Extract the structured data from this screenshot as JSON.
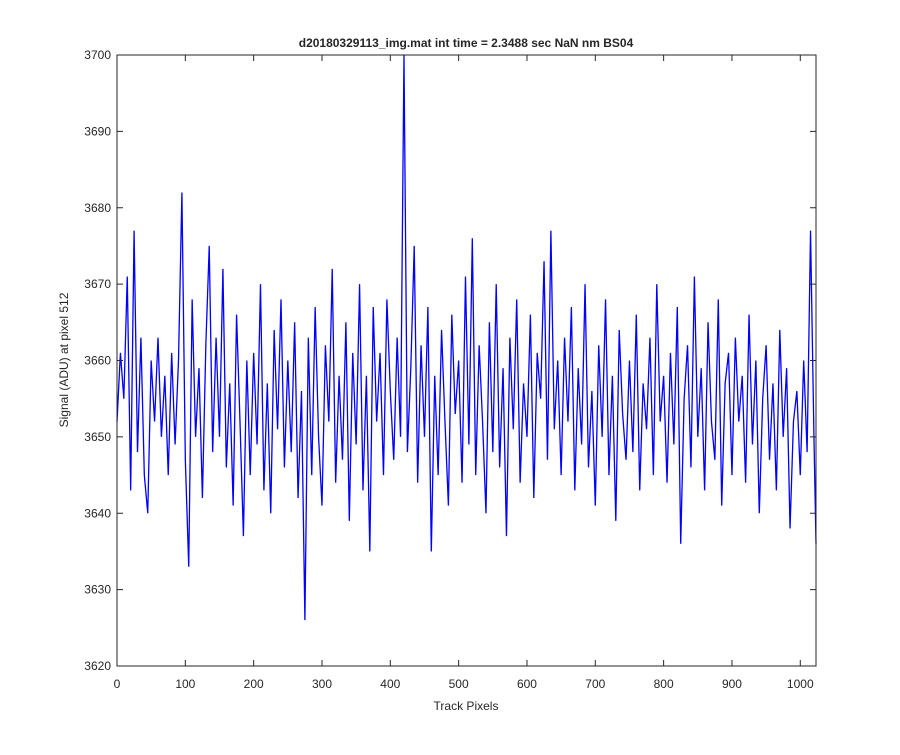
{
  "chart_data": {
    "type": "line",
    "title": "d20180329113_img.mat int time = 2.3488 sec  NaN nm BS04",
    "xlabel": "Track Pixels",
    "ylabel": "Signal (ADU) at pixel 512",
    "x": [
      0,
      5,
      10,
      15,
      20,
      25,
      30,
      35,
      40,
      45,
      50,
      55,
      60,
      65,
      70,
      75,
      80,
      85,
      90,
      95,
      100,
      105,
      110,
      115,
      120,
      125,
      130,
      135,
      140,
      145,
      150,
      155,
      160,
      165,
      170,
      175,
      180,
      185,
      190,
      195,
      200,
      205,
      210,
      215,
      220,
      225,
      230,
      235,
      240,
      245,
      250,
      255,
      260,
      265,
      270,
      275,
      280,
      285,
      290,
      295,
      300,
      305,
      310,
      315,
      320,
      325,
      330,
      335,
      340,
      345,
      350,
      355,
      360,
      365,
      370,
      375,
      380,
      385,
      390,
      395,
      400,
      405,
      410,
      415,
      420,
      425,
      430,
      435,
      440,
      445,
      450,
      455,
      460,
      465,
      470,
      475,
      480,
      485,
      490,
      495,
      500,
      505,
      510,
      515,
      520,
      525,
      530,
      535,
      540,
      545,
      550,
      555,
      560,
      565,
      570,
      575,
      580,
      585,
      590,
      595,
      600,
      605,
      610,
      615,
      620,
      625,
      630,
      635,
      640,
      645,
      650,
      655,
      660,
      665,
      670,
      675,
      680,
      685,
      690,
      695,
      700,
      705,
      710,
      715,
      720,
      725,
      730,
      735,
      740,
      745,
      750,
      755,
      760,
      765,
      770,
      775,
      780,
      785,
      790,
      795,
      800,
      805,
      810,
      815,
      820,
      825,
      830,
      835,
      840,
      845,
      850,
      855,
      860,
      865,
      870,
      875,
      880,
      885,
      890,
      895,
      900,
      905,
      910,
      915,
      920,
      925,
      930,
      935,
      940,
      945,
      950,
      955,
      960,
      965,
      970,
      975,
      980,
      985,
      990,
      995,
      1000,
      1005,
      1010,
      1015,
      1020,
      1023
    ],
    "series": [
      {
        "name": "signal",
        "color": "#0000ff",
        "values": [
          3652,
          3661,
          3655,
          3671,
          3643,
          3677,
          3648,
          3663,
          3645,
          3640,
          3660,
          3652,
          3663,
          3650,
          3658,
          3645,
          3661,
          3649,
          3660,
          3682,
          3647,
          3633,
          3668,
          3650,
          3659,
          3642,
          3662,
          3675,
          3648,
          3663,
          3650,
          3672,
          3646,
          3657,
          3641,
          3666,
          3652,
          3637,
          3660,
          3645,
          3661,
          3649,
          3670,
          3643,
          3657,
          3640,
          3664,
          3651,
          3668,
          3646,
          3660,
          3648,
          3665,
          3642,
          3656,
          3626,
          3663,
          3645,
          3667,
          3650,
          3641,
          3662,
          3652,
          3672,
          3644,
          3658,
          3647,
          3665,
          3639,
          3661,
          3649,
          3670,
          3643,
          3658,
          3635,
          3667,
          3652,
          3661,
          3645,
          3668,
          3656,
          3647,
          3663,
          3650,
          3700,
          3648,
          3659,
          3675,
          3644,
          3662,
          3650,
          3667,
          3635,
          3658,
          3645,
          3664,
          3652,
          3641,
          3666,
          3653,
          3660,
          3644,
          3671,
          3649,
          3676,
          3645,
          3662,
          3652,
          3640,
          3665,
          3648,
          3670,
          3646,
          3659,
          3637,
          3663,
          3651,
          3668,
          3644,
          3657,
          3650,
          3666,
          3642,
          3661,
          3655,
          3673,
          3647,
          3677,
          3651,
          3660,
          3645,
          3663,
          3652,
          3667,
          3643,
          3659,
          3649,
          3670,
          3646,
          3656,
          3641,
          3662,
          3650,
          3668,
          3645,
          3658,
          3639,
          3664,
          3653,
          3647,
          3660,
          3648,
          3666,
          3643,
          3657,
          3651,
          3663,
          3645,
          3670,
          3652,
          3658,
          3644,
          3661,
          3649,
          3667,
          3636,
          3655,
          3662,
          3646,
          3671,
          3650,
          3659,
          3643,
          3665,
          3652,
          3647,
          3668,
          3641,
          3657,
          3661,
          3645,
          3663,
          3652,
          3658,
          3644,
          3666,
          3649,
          3660,
          3640,
          3655,
          3662,
          3647,
          3657,
          3643,
          3664,
          3650,
          3659,
          3638,
          3652,
          3656,
          3645,
          3660,
          3648,
          3677,
          3650,
          3636
        ]
      }
    ],
    "xlim": [
      0,
      1023
    ],
    "ylim": [
      3620,
      3700
    ],
    "xticks": [
      0,
      100,
      200,
      300,
      400,
      500,
      600,
      700,
      800,
      900,
      1000
    ],
    "yticks": [
      3620,
      3630,
      3640,
      3650,
      3660,
      3670,
      3680,
      3690,
      3700
    ]
  }
}
